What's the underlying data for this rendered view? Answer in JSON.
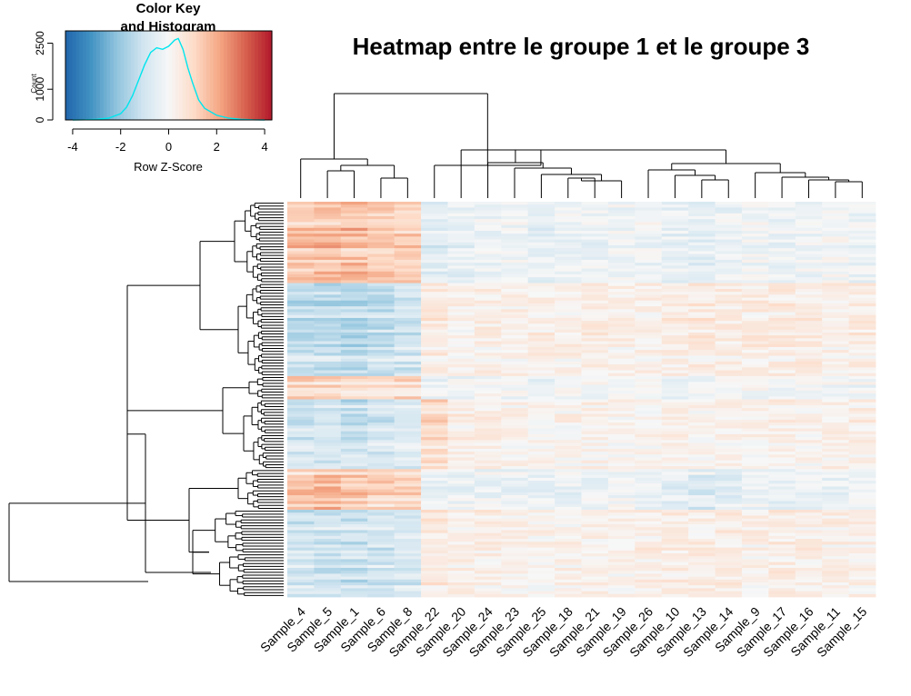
{
  "main_title": "Heatmap entre le groupe 1 et le groupe 3",
  "color_key": {
    "title_line1": "Color Key",
    "title_line2": "and Histogram",
    "xlabel": "Row Z-Score",
    "ylabel": "Count",
    "x_ticks": [
      -4,
      -2,
      0,
      2,
      4
    ],
    "x_tick_labels": [
      "-4",
      "-2",
      "0",
      "2",
      "4"
    ],
    "y_ticks": [
      0,
      1000,
      2500
    ],
    "y_tick_labels": [
      "0",
      "1000",
      "2500"
    ],
    "xlim": [
      -4.3,
      4.3
    ],
    "ylim": [
      0,
      2900
    ],
    "colors": [
      "#2166ac",
      "#4393c3",
      "#92c5de",
      "#d1e5f0",
      "#f7f7f7",
      "#fddbc7",
      "#f4a582",
      "#d6604d",
      "#b2182b"
    ],
    "histogram_color": "#00e5ee"
  },
  "chart_data": {
    "type": "heatmap",
    "title": "Heatmap entre le groupe 1 et le groupe 3",
    "columns": [
      "Sample_4",
      "Sample_5",
      "Sample_1",
      "Sample_6",
      "Sample_8",
      "Sample_22",
      "Sample_20",
      "Sample_24",
      "Sample_23",
      "Sample_25",
      "Sample_18",
      "Sample_21",
      "Sample_19",
      "Sample_26",
      "Sample_10",
      "Sample_13",
      "Sample_14",
      "Sample_9",
      "Sample_17",
      "Sample_16",
      "Sample_11",
      "Sample_15"
    ],
    "value_scale": "Row Z-Score",
    "value_range": [
      -4.3,
      4.3
    ],
    "color_scale": [
      "#2166ac",
      "#f7f7f7",
      "#b2182b"
    ],
    "row_dendrogram": true,
    "column_dendrogram": true,
    "histogram": {
      "x": [
        -4,
        -3.5,
        -3,
        -2.5,
        -2,
        -1.75,
        -1.5,
        -1.25,
        -1,
        -0.75,
        -0.5,
        -0.25,
        0,
        0.25,
        0.4,
        0.6,
        0.8,
        1,
        1.25,
        1.5,
        2,
        2.5,
        3,
        3.5,
        4
      ],
      "counts": [
        0,
        5,
        20,
        60,
        200,
        420,
        800,
        1300,
        1800,
        2200,
        2350,
        2300,
        2400,
        2600,
        2650,
        2300,
        1700,
        1200,
        650,
        380,
        150,
        60,
        20,
        5,
        0
      ]
    },
    "row_blocks": [
      {
        "rows": 28,
        "pattern": [
          1.4,
          1.5,
          1.5,
          1.3,
          1.2,
          -0.6,
          -0.4,
          -0.3,
          -0.2,
          -0.4,
          -0.3,
          -0.3,
          -0.2,
          -0.2,
          -0.4,
          -0.5,
          -0.3,
          -0.2,
          -0.3,
          -0.2,
          -0.1,
          -0.3
        ]
      },
      {
        "rows": 32,
        "pattern": [
          -1.3,
          -1.3,
          -1.4,
          -1.2,
          -1.0,
          0.5,
          0.2,
          0.3,
          0.3,
          0.4,
          0.3,
          0.4,
          0.3,
          0.3,
          0.4,
          0.5,
          0.4,
          0.4,
          0.4,
          0.4,
          0.3,
          0.4
        ]
      },
      {
        "rows": 8,
        "pattern": [
          1.1,
          1.1,
          0.9,
          1.0,
          1.0,
          -0.4,
          -0.2,
          -0.1,
          -0.2,
          -0.3,
          -0.2,
          -0.2,
          -0.1,
          -0.1,
          -0.2,
          -0.3,
          -0.2,
          -0.1,
          -0.1,
          -0.1,
          -0.1,
          -0.2
        ]
      },
      {
        "rows": 24,
        "pattern": [
          -0.9,
          -0.9,
          -1.1,
          -0.9,
          -0.8,
          0.9,
          0.4,
          0.3,
          0.2,
          0.2,
          0.2,
          0.2,
          0.1,
          0.2,
          0.3,
          0.2,
          0.2,
          0.2,
          0.3,
          0.2,
          0.3,
          0.3
        ]
      },
      {
        "rows": 14,
        "pattern": [
          1.3,
          1.4,
          1.2,
          1.1,
          1.0,
          -0.3,
          -0.3,
          -0.3,
          -0.3,
          -0.3,
          -0.3,
          -0.3,
          -0.2,
          -0.3,
          -0.5,
          -0.6,
          -0.5,
          -0.3,
          -0.4,
          -0.3,
          -0.3,
          -0.3
        ]
      },
      {
        "rows": 30,
        "pattern": [
          -1.1,
          -1.1,
          -1.2,
          -1.0,
          -0.9,
          0.6,
          0.3,
          0.3,
          0.2,
          0.2,
          0.2,
          0.3,
          0.2,
          0.3,
          0.4,
          0.4,
          0.4,
          0.3,
          0.4,
          0.3,
          0.3,
          0.3
        ]
      }
    ]
  }
}
